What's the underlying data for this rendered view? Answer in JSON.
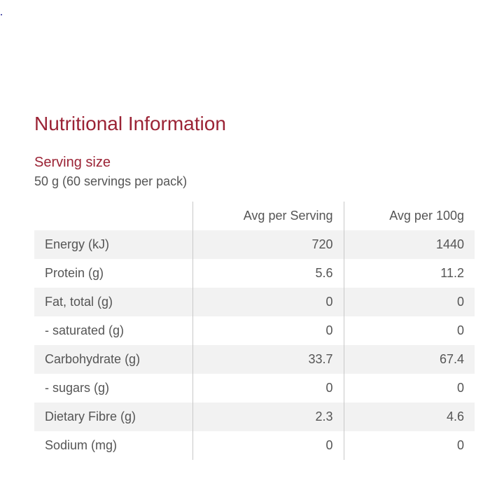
{
  "title": "Nutritional Information",
  "serving": {
    "label": "Serving size",
    "value": "50 g (60 servings per pack)"
  },
  "table": {
    "headers": [
      "",
      "Avg per Serving",
      "Avg per 100g"
    ],
    "rows": [
      {
        "label": "Energy (kJ)",
        "per_serving": "720",
        "per_100g": "1440"
      },
      {
        "label": "Protein (g)",
        "per_serving": "5.6",
        "per_100g": "11.2"
      },
      {
        "label": "Fat, total (g)",
        "per_serving": "0",
        "per_100g": "0"
      },
      {
        "label": "- saturated (g)",
        "per_serving": "0",
        "per_100g": "0"
      },
      {
        "label": "Carbohydrate (g)",
        "per_serving": "33.7",
        "per_100g": "67.4"
      },
      {
        "label": "- sugars (g)",
        "per_serving": "0",
        "per_100g": "0"
      },
      {
        "label": "Dietary Fibre (g)",
        "per_serving": "2.3",
        "per_100g": "4.6"
      },
      {
        "label": "Sodium (mg)",
        "per_serving": "0",
        "per_100g": "0"
      }
    ]
  },
  "colors": {
    "accent": "#9b2335",
    "text": "#555555",
    "row_shade": "#f2f2f2",
    "separator": "#c8c8c8"
  }
}
